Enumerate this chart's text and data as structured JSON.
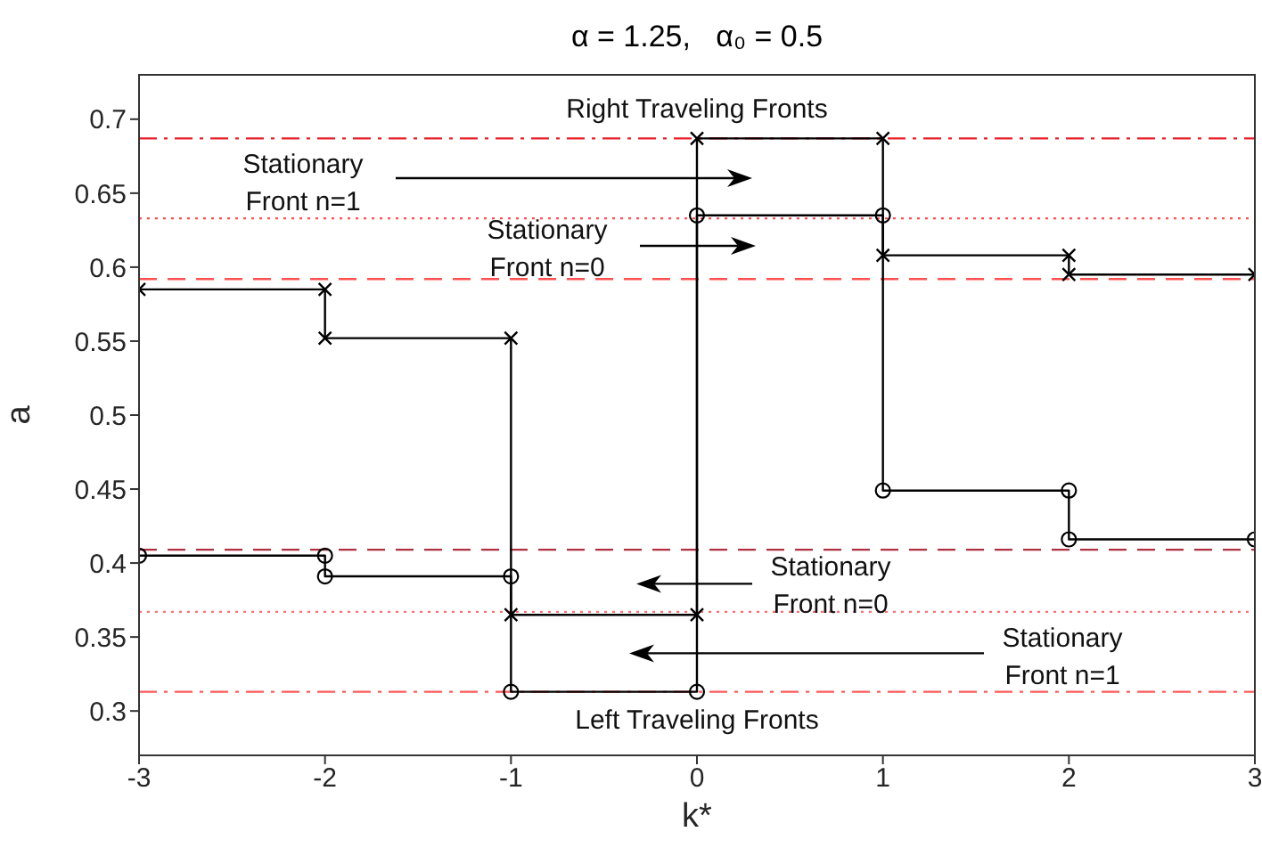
{
  "chart_data": {
    "type": "line",
    "title": "α = 1.25,   α₀ = 0.5",
    "xlabel": "k*",
    "ylabel": "a",
    "xlim": [
      -3,
      3
    ],
    "xticks": [
      -3,
      -2,
      -1,
      0,
      1,
      2,
      3
    ],
    "ylim": [
      0.27,
      0.73
    ],
    "yticks": [
      0.3,
      0.35,
      0.4,
      0.45,
      0.5,
      0.55,
      0.6,
      0.65,
      0.7
    ],
    "line_style": "solid",
    "series": [
      {
        "color": "#000000",
        "marker": "cross",
        "x": [
          -3,
          -2,
          -2,
          -1,
          -1,
          0,
          0,
          1,
          1,
          2,
          2,
          3
        ],
        "values": [
          0.585,
          0.585,
          0.552,
          0.552,
          0.365,
          0.365,
          0.687,
          0.687,
          0.608,
          0.608,
          0.595,
          0.595
        ]
      },
      {
        "color": "#000000",
        "marker": "circle",
        "x": [
          -3,
          -2,
          -2,
          -1,
          -1,
          0,
          0,
          1,
          1,
          2,
          2,
          3
        ],
        "values": [
          0.405,
          0.405,
          0.391,
          0.391,
          0.313,
          0.313,
          0.635,
          0.635,
          0.449,
          0.449,
          0.416,
          0.416
        ]
      }
    ],
    "ref_lines": [
      {
        "axis": "y",
        "value": 0.687,
        "color": "#e8202a",
        "line_style": "dashdot"
      },
      {
        "axis": "y",
        "value": 0.633,
        "color": "#ff4d4d",
        "line_style": "dotted"
      },
      {
        "axis": "y",
        "value": 0.592,
        "color": "#ff5050",
        "line_style": "dashed"
      },
      {
        "axis": "y",
        "value": 0.409,
        "color": "#b03040",
        "line_style": "dashed"
      },
      {
        "axis": "y",
        "value": 0.367,
        "color": "#ff7070",
        "line_style": "dotted"
      },
      {
        "axis": "y",
        "value": 0.313,
        "color": "#ff5a5a",
        "line_style": "dashdot"
      }
    ],
    "annotations": [
      "Right Traveling Fronts",
      "Stationary\nFront n=1",
      "Stationary\nFront n=0",
      "Stationary\nFront n=0",
      "Stationary\nFront n=1",
      "Left Traveling Fronts"
    ]
  }
}
